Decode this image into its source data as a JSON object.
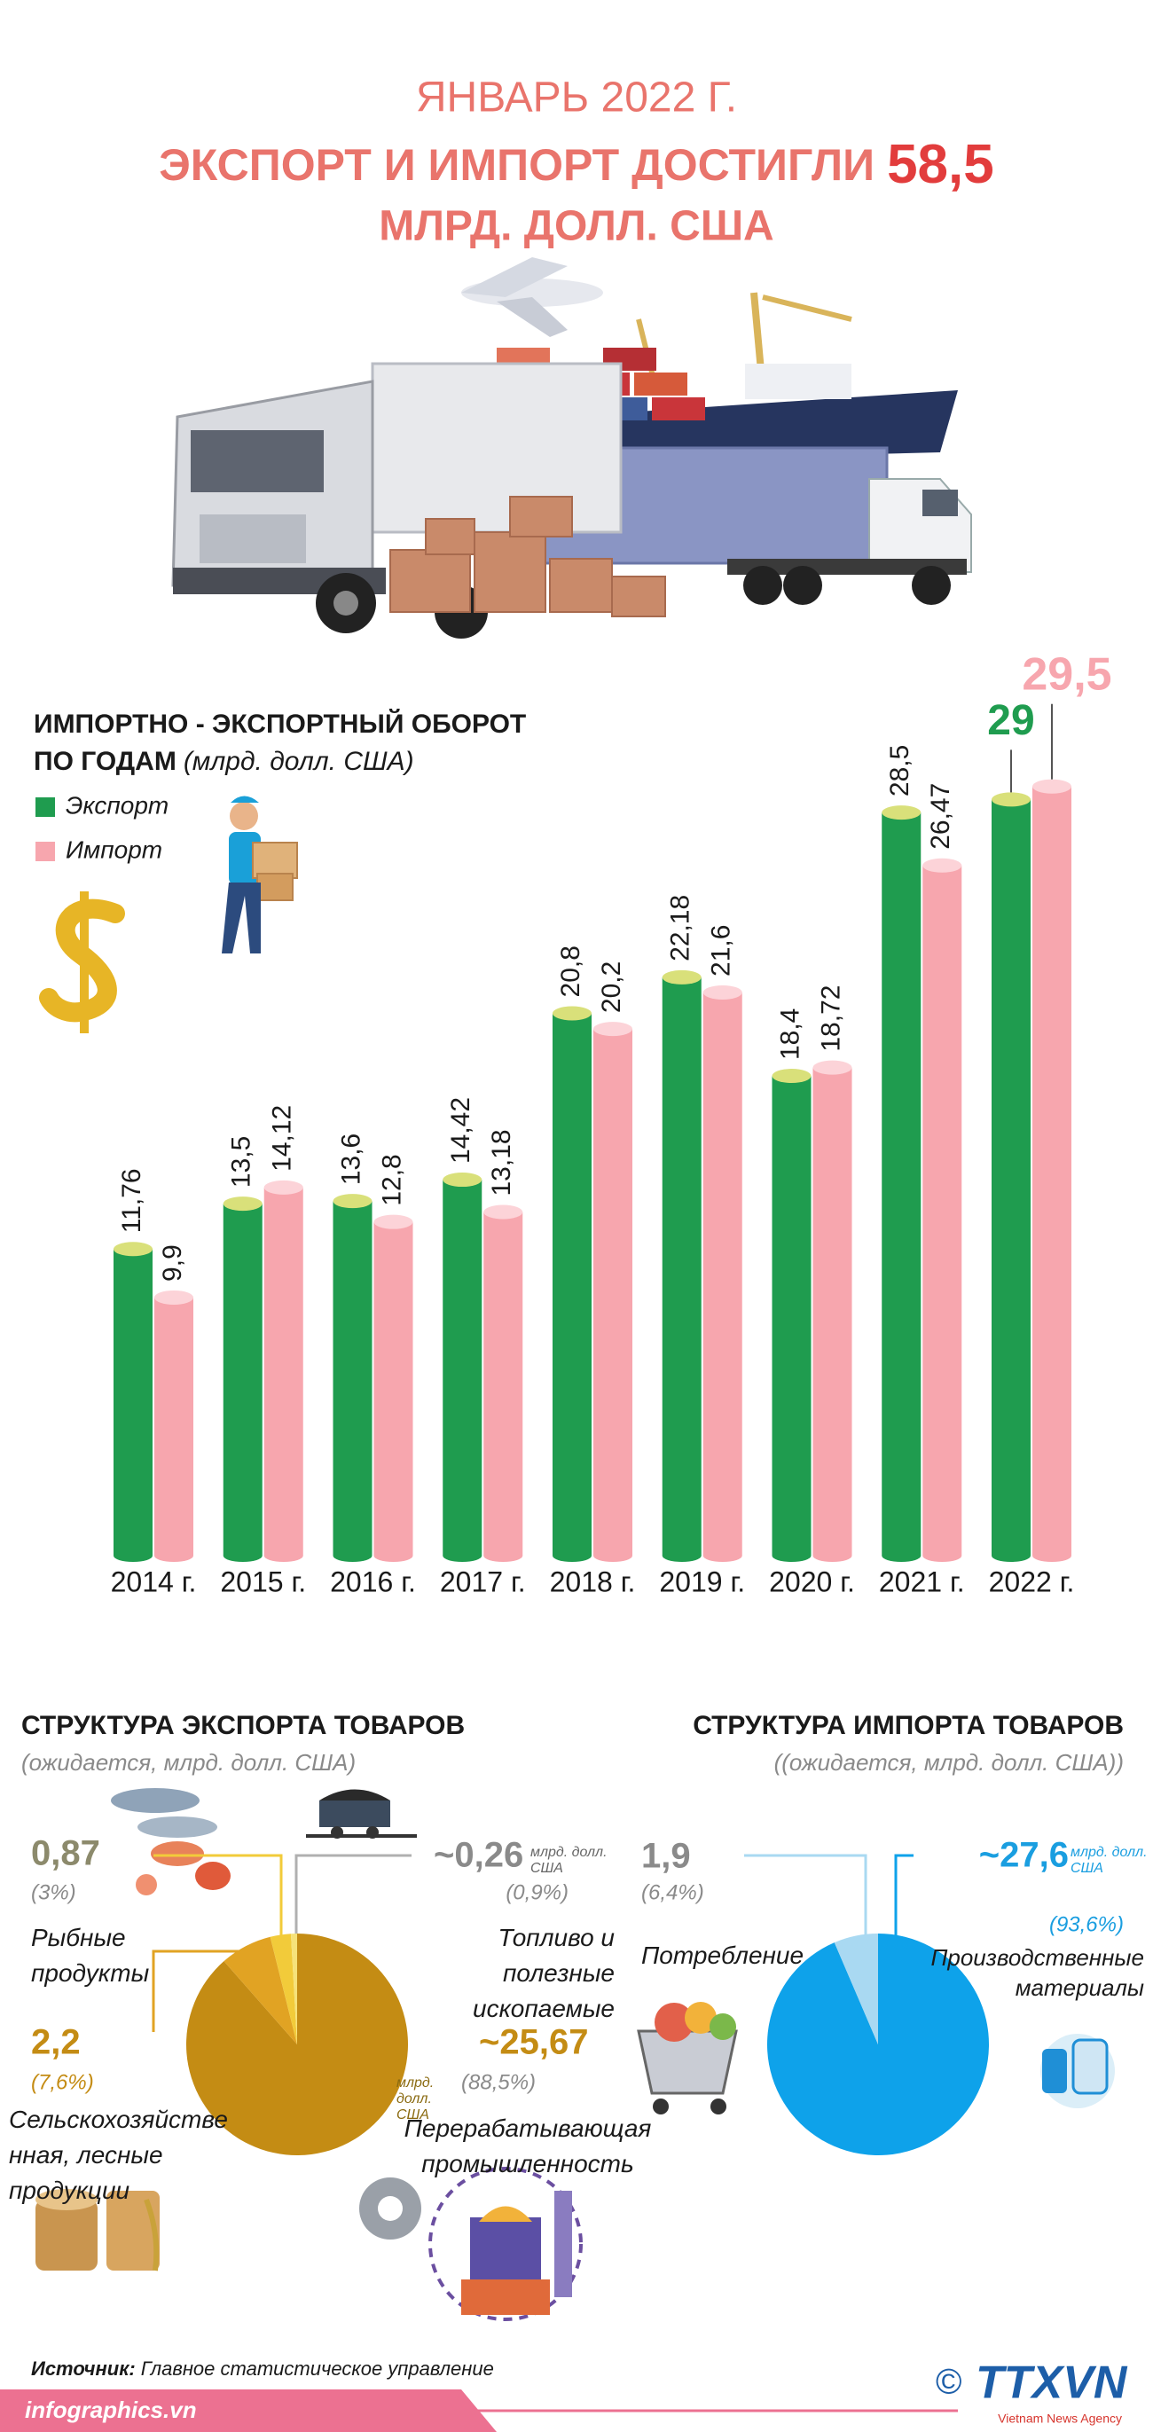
{
  "header": {
    "line1": "ЯНВАРЬ 2022 Г.",
    "line2": "ЭКСПОРТ И ИМПОРТ ДОСТИГЛИ",
    "highlight": "58,5",
    "line3": "МЛРД. ДОЛЛ. США"
  },
  "chart_data": [
    {
      "type": "bar",
      "title": "ИМПОРТНО - ЭКСПОРТНЫЙ ОБОРОТ",
      "title_2": "ПО ГОДАМ",
      "unit": "(млрд. долл. США)",
      "categories": [
        "2014 г.",
        "2015 г.",
        "2016 г.",
        "2017 г.",
        "2018 г.",
        "2019 г.",
        "2020 г.",
        "2021 г.",
        "2022 г."
      ],
      "series": [
        {
          "name": "Экспорт",
          "color": "#1f9c4f",
          "values": [
            11.76,
            13.5,
            13.6,
            14.42,
            20.8,
            22.18,
            18.4,
            28.5,
            29
          ],
          "value_labels": [
            "11,76",
            "13,5",
            "13,6",
            "14,42",
            "20,8",
            "22,18",
            "18,4",
            "28,5",
            "29"
          ]
        },
        {
          "name": "Импорт",
          "color": "#f7a6ae",
          "values": [
            9.9,
            14.12,
            12.8,
            13.18,
            20.2,
            21.6,
            18.72,
            26.47,
            29.5
          ],
          "value_labels": [
            "9,9",
            "14,12",
            "12,8",
            "13,18",
            "20,2",
            "21,6",
            "18,72",
            "26,47",
            "29,5"
          ]
        }
      ],
      "ylim": [
        0,
        30
      ],
      "legend": "upper left"
    },
    {
      "type": "pie",
      "title": "СТРУКТУРА ЭКСПОРТА ТОВАРОВ",
      "subtitle": "(ожидается, млрд. долл. США)",
      "unit": "млрд. долл. США",
      "categories": [
        "Перерабатывающая промышленность",
        "Сельскохозяйственная, лесные продукции",
        "Рыбные продукты",
        "Топливо и полезные ископаемые"
      ],
      "values": [
        25.67,
        2.2,
        0.87,
        0.26
      ],
      "value_labels": [
        "~25,67",
        "2,2",
        "0,87",
        "~0,26"
      ],
      "percents": [
        88.5,
        7.6,
        3,
        0.9
      ],
      "percent_labels": [
        "(88,5%)",
        "(7,6%)",
        "(3%)",
        "(0,9%)"
      ],
      "colors": [
        "#c48c14",
        "#e1a323",
        "#f2cb3a",
        "#f6e27a"
      ]
    },
    {
      "type": "pie",
      "title": "СТРУКТУРА ИМПОРТА ТОВАРОВ",
      "subtitle": "((ожидается, млрд. долл. США))",
      "unit": "млрд. долл. США",
      "categories": [
        "Производственные материалы",
        "Потребление"
      ],
      "values": [
        27.6,
        1.9
      ],
      "value_labels": [
        "~27,6",
        "1,9"
      ],
      "percents": [
        93.6,
        6.4
      ],
      "percent_labels": [
        "(93,6%)",
        "(6,4%)"
      ],
      "colors": [
        "#0ea2ea",
        "#a9d9f2"
      ]
    }
  ],
  "source": {
    "label": "Источник:",
    "text": "Главное статистическое управление"
  },
  "footer": {
    "site": "infographics.vn",
    "copyright": "©",
    "logo": "TTXVN",
    "agency": "Vietnam News Agency"
  }
}
